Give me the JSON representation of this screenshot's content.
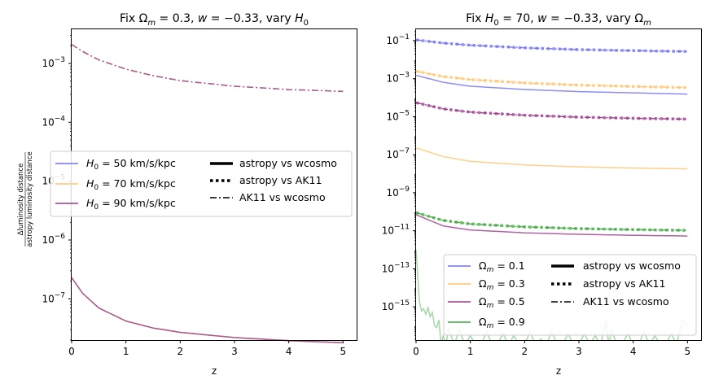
{
  "chart_data": [
    {
      "type": "line",
      "title_parts": {
        "pre": "Fix ",
        "sym": "Ω",
        "sub": "m",
        "mid": " = 0.3, ",
        "w": "w",
        "post": " = −0.33, vary ",
        "h": "H",
        "hsub": "0"
      },
      "xlabel": "z",
      "ylabel_num": "Δluminosity distance",
      "ylabel_den": "astropy luminosity distance",
      "yscale": "log",
      "xlim": [
        0,
        5.25
      ],
      "ylim_exp": [
        -7.7,
        -2.42
      ],
      "x_ticks": [
        0,
        1,
        2,
        3,
        4,
        5
      ],
      "y_ticks": [
        {
          "exp": -7,
          "label": "10",
          "sup": "−7"
        },
        {
          "exp": -6,
          "label": "10",
          "sup": "−6"
        },
        {
          "exp": -5,
          "label": "10",
          "sup": "−5"
        },
        {
          "exp": -4,
          "label": "10",
          "sup": "−4"
        },
        {
          "exp": -3,
          "label": "10",
          "sup": "−3"
        }
      ],
      "series": [
        {
          "name": "H0 = 50 km/s/kpc",
          "color": "#7070f0",
          "comparisons": [
            "astropy vs wcosmo",
            "AK11 vs wcosmo"
          ]
        },
        {
          "name": "H0 = 70 km/s/kpc",
          "color": "#ffc46e",
          "comparisons": [
            "astropy vs wcosmo",
            "AK11 vs wcosmo"
          ]
        },
        {
          "name": "H0 = 90 km/s/kpc",
          "color": "#9b3b8a",
          "comparisons": [
            "astropy vs wcosmo",
            "AK11 vs wcosmo"
          ]
        }
      ],
      "curves": {
        "astropy_vs_wcosmo": {
          "z": [
            0,
            0.2,
            0.5,
            1,
            1.5,
            2,
            3,
            4,
            5
          ],
          "values": [
            2.3e-07,
            1.25e-07,
            7e-08,
            4.2e-08,
            3.2e-08,
            2.7e-08,
            2.2e-08,
            1.95e-08,
            1.8e-08
          ]
        },
        "ak11_vs_wcosmo": {
          "z": [
            0,
            0.2,
            0.5,
            1,
            1.5,
            2,
            3,
            4,
            5
          ],
          "values": [
            0.0021,
            0.0016,
            0.00115,
            0.0008,
            0.00062,
            0.00051,
            0.00041,
            0.00036,
            0.000335
          ]
        }
      },
      "legend": {
        "left": [
          {
            "pre": "H",
            "sub": "0",
            "post": " = 50 km/s/kpc",
            "color": "#7070f0"
          },
          {
            "pre": "H",
            "sub": "0",
            "post": " = 70 km/s/kpc",
            "color": "#ffc46e"
          },
          {
            "pre": "H",
            "sub": "0",
            "post": " = 90 km/s/kpc",
            "color": "#9b3b8a"
          }
        ],
        "right": [
          {
            "label": "astropy vs wcosmo",
            "style": "solid"
          },
          {
            "label": "astropy vs AK11",
            "style": "dotted"
          },
          {
            "label": "AK11 vs wcosmo",
            "style": "dashdot"
          }
        ]
      }
    },
    {
      "type": "line",
      "title_parts": {
        "pre": "Fix ",
        "h": "H",
        "hsub": "0",
        "mid": " = 70, ",
        "w": "w",
        "post": " = −0.33, vary ",
        "sym": "Ω",
        "sub": "m"
      },
      "xlabel": "z",
      "yscale": "log",
      "xlim": [
        0,
        5.25
      ],
      "ylim_exp": [
        -16.75,
        -0.4
      ],
      "x_ticks": [
        0,
        1,
        2,
        3,
        4,
        5
      ],
      "y_ticks": [
        {
          "exp": -15,
          "label": "10",
          "sup": "−15"
        },
        {
          "exp": -13,
          "label": "10",
          "sup": "−13"
        },
        {
          "exp": -11,
          "label": "10",
          "sup": "−11"
        },
        {
          "exp": -9,
          "label": "10",
          "sup": "−9"
        },
        {
          "exp": -7,
          "label": "10",
          "sup": "−7"
        },
        {
          "exp": -5,
          "label": "10",
          "sup": "−5"
        },
        {
          "exp": -3,
          "label": "10",
          "sup": "−3"
        },
        {
          "exp": -1,
          "label": "10",
          "sup": "−1"
        }
      ],
      "series": [
        {
          "name": "Ωm = 0.1",
          "color": "#7070f0",
          "astropy_vs_wcosmo": {
            "z": [
              0,
              0.5,
              1,
              2,
              3,
              4,
              5
            ],
            "values": [
              0.0015,
              0.00065,
              0.0004,
              0.00027,
              0.00021,
              0.00018,
              0.000155
            ]
          },
          "ak11_vs_wcosmo": {
            "z": [
              0,
              0.5,
              1,
              2,
              3,
              4,
              5
            ],
            "values": [
              0.11,
              0.075,
              0.058,
              0.042,
              0.034,
              0.03,
              0.027
            ]
          }
        },
        {
          "name": "Ωm = 0.3",
          "color": "#ffc46e",
          "astropy_vs_wcosmo": {
            "z": [
              0,
              0.5,
              1,
              2,
              3,
              4,
              5
            ],
            "values": [
              2.3e-07,
              8e-08,
              4.5e-08,
              2.9e-08,
              2.3e-08,
              2e-08,
              1.8e-08
            ]
          },
          "ak11_vs_wcosmo": {
            "z": [
              0,
              0.5,
              1,
              2,
              3,
              4,
              5
            ],
            "values": [
              0.0025,
              0.0013,
              0.0009,
              0.0006,
              0.00046,
              0.00039,
              0.00034
            ]
          }
        },
        {
          "name": "Ωm = 0.5",
          "color": "#9b3b8a",
          "astropy_vs_wcosmo": {
            "z": [
              0,
              0.5,
              1,
              2,
              3,
              4,
              5
            ],
            "values": [
              7e-11,
              1.8e-11,
              1.1e-11,
              7.8e-12,
              6.5e-12,
              5.8e-12,
              5.3e-12
            ]
          },
          "ak11_vs_wcosmo": {
            "z": [
              0,
              0.5,
              1,
              2,
              3,
              4,
              5
            ],
            "values": [
              5.5e-05,
              2.6e-05,
              1.75e-05,
              1.2e-05,
              9.5e-06,
              8.3e-06,
              7.5e-06
            ]
          }
        },
        {
          "name": "Ωm = 0.9",
          "color": "#3aa63a",
          "astropy_vs_wcosmo_noise": "values near 1e-15 to 1e-17 fluctuating",
          "ak11_vs_wcosmo": {
            "z": [
              0,
              0.5,
              1,
              2,
              3,
              4,
              5
            ],
            "values": [
              9e-11,
              3.5e-11,
              2.3e-11,
              1.6e-11,
              1.3e-11,
              1.15e-11,
              1.05e-11
            ]
          }
        }
      ],
      "legend": {
        "left": [
          {
            "sym": "Ω",
            "sub": "m",
            "post": " = 0.1",
            "color": "#7070f0"
          },
          {
            "sym": "Ω",
            "sub": "m",
            "post": " = 0.3",
            "color": "#ffc46e"
          },
          {
            "sym": "Ω",
            "sub": "m",
            "post": " = 0.5",
            "color": "#9b3b8a"
          },
          {
            "sym": "Ω",
            "sub": "m",
            "post": " = 0.9",
            "color": "#3aa63a"
          }
        ],
        "right": [
          {
            "label": "astropy vs wcosmo",
            "style": "solid"
          },
          {
            "label": "astropy vs AK11",
            "style": "dotted"
          },
          {
            "label": "AK11 vs wcosmo",
            "style": "dashdot"
          }
        ]
      }
    }
  ]
}
